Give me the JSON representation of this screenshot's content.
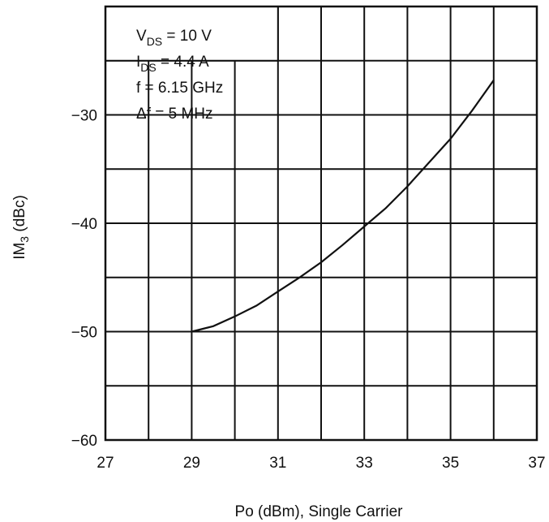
{
  "chart_data": {
    "type": "line",
    "xlabel": "Po (dBm), Single Carrier",
    "ylabel_main": "IM",
    "ylabel_sub": "3",
    "ylabel_unit": " (dBc)",
    "xlim": [
      27,
      37
    ],
    "ylim": [
      -60,
      -20
    ],
    "x_ticks": [
      27,
      29,
      31,
      33,
      35,
      37
    ],
    "x_tick_labels": [
      "27",
      "29",
      "31",
      "33",
      "35",
      "37"
    ],
    "y_ticks": [
      -30,
      -40,
      -50,
      -60
    ],
    "y_tick_labels": [
      "−30",
      "−40",
      "−50",
      "−60"
    ],
    "x_grid_step": 1,
    "y_grid_step": 5,
    "grid": true,
    "series": [
      {
        "x": [
          29,
          29.5,
          30,
          30.5,
          31,
          31.5,
          32,
          32.5,
          33,
          33.5,
          34,
          34.5,
          35,
          35.5,
          36
        ],
        "values": [
          -50,
          -49.5,
          -48.6,
          -47.6,
          -46.3,
          -45,
          -43.6,
          -42,
          -40.3,
          -38.6,
          -36.6,
          -34.4,
          -32.2,
          -29.6,
          -26.8
        ]
      }
    ],
    "conditions": [
      {
        "main": "V",
        "sub": "DS",
        "rest": " = 10 V"
      },
      {
        "main": "I",
        "sub": "DS",
        "rest": " = 4.4 A"
      },
      {
        "main": "f",
        "sub": "",
        "rest": " = 6.15 GHz"
      },
      {
        "main": "Δf",
        "sub": "",
        "rest": " = 5 MHz"
      }
    ]
  }
}
